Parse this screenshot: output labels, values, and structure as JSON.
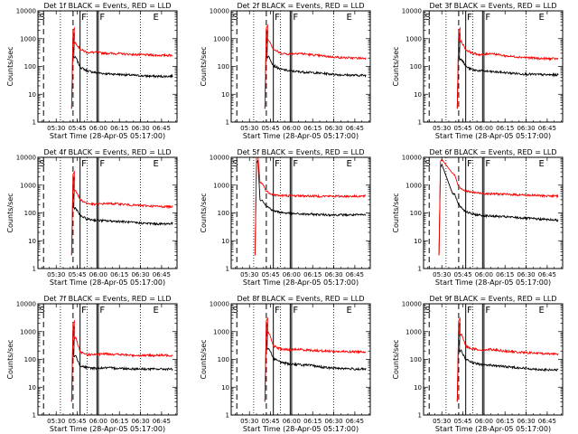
{
  "figure": {
    "xlabel": "Start Time (28-Apr-05 05:17:00)",
    "ylabel": "Counts/sec",
    "xtick_labels": [
      "05:30",
      "05:45",
      "06:00",
      "06:15",
      "06:30",
      "06:45"
    ],
    "ytick_labels": [
      "1",
      "10",
      "100",
      "1000",
      "10000"
    ],
    "segment_labels": [
      "S",
      "F",
      "F",
      "E"
    ]
  },
  "colors": {
    "events": "#000000",
    "lld": "#ff0000",
    "axes": "#000000"
  },
  "chart_data": [
    {
      "type": "line",
      "title": "Det 1f BLACK = Events, RED = LLD",
      "xlabel": "Start Time (28-Apr-05 05:17:00)",
      "ylabel": "Counts/sec",
      "xlim": [
        "05:17",
        "06:56"
      ],
      "ylim": [
        1,
        10000
      ],
      "yscale": "log",
      "grid": false,
      "peak_time": "05:43",
      "peak_value": 2000,
      "series": [
        {
          "name": "Events",
          "times": [
            "05:44",
            "05:47",
            "05:52",
            "05:58",
            "06:05",
            "06:15",
            "06:25",
            "06:35",
            "06:45",
            "06:53"
          ],
          "values": [
            210,
            95,
            70,
            60,
            55,
            52,
            48,
            45,
            44,
            45
          ]
        },
        {
          "name": "LLD",
          "times": [
            "05:44",
            "05:47",
            "05:52",
            "05:58",
            "06:05",
            "06:15",
            "06:25",
            "06:35",
            "06:45",
            "06:53"
          ],
          "values": [
            700,
            420,
            320,
            320,
            300,
            290,
            270,
            260,
            250,
            255
          ]
        }
      ],
      "vlines": {
        "solid": [
          "05:47",
          "05:59",
          "06:00"
        ],
        "dashed": [
          "05:21",
          "05:42"
        ],
        "dotted": [
          "05:33",
          "05:52",
          "06:30"
        ]
      },
      "segment_times": {
        "S": "05:17",
        "F1": "05:47",
        "F2": "06:00",
        "E": "06:38"
      }
    },
    {
      "type": "line",
      "title": "Det 2f BLACK = Events, RED = LLD",
      "xlabel": "Start Time (28-Apr-05 05:17:00)",
      "ylabel": "Counts/sec",
      "xlim": [
        "05:17",
        "06:56"
      ],
      "ylim": [
        1,
        10000
      ],
      "yscale": "log",
      "grid": false,
      "peak_time": "05:43",
      "peak_value": 2500,
      "series": [
        {
          "name": "Events",
          "times": [
            "05:44",
            "05:47",
            "05:52",
            "05:58",
            "06:05",
            "06:15",
            "06:25",
            "06:35",
            "06:45",
            "06:53"
          ],
          "values": [
            220,
            110,
            80,
            70,
            65,
            60,
            55,
            50,
            48,
            48
          ]
        },
        {
          "name": "LLD",
          "times": [
            "05:44",
            "05:47",
            "05:52",
            "05:58",
            "06:05",
            "06:15",
            "06:25",
            "06:35",
            "06:45",
            "06:53"
          ],
          "values": [
            900,
            420,
            300,
            280,
            300,
            260,
            230,
            210,
            200,
            200
          ]
        }
      ],
      "vlines": {
        "solid": [
          "05:47",
          "05:59",
          "06:00"
        ],
        "dashed": [
          "05:21",
          "05:42"
        ],
        "dotted": [
          "05:33",
          "05:52",
          "06:30"
        ]
      },
      "segment_times": {
        "S": "05:17",
        "F1": "05:47",
        "F2": "06:00",
        "E": "06:38"
      }
    },
    {
      "type": "line",
      "title": "Det 3f BLACK = Events, RED = LLD",
      "xlabel": "Start Time (28-Apr-05 05:17:00)",
      "ylabel": "Counts/sec",
      "xlim": [
        "05:17",
        "06:56"
      ],
      "ylim": [
        1,
        10000
      ],
      "yscale": "log",
      "grid": false,
      "peak_time": "05:43",
      "peak_value": 2000,
      "series": [
        {
          "name": "Events",
          "times": [
            "05:44",
            "05:47",
            "05:52",
            "05:58",
            "06:05",
            "06:15",
            "06:25",
            "06:35",
            "06:45",
            "06:53"
          ],
          "values": [
            190,
            100,
            75,
            70,
            65,
            60,
            55,
            52,
            50,
            50
          ]
        },
        {
          "name": "LLD",
          "times": [
            "05:44",
            "05:47",
            "05:52",
            "05:58",
            "06:05",
            "06:15",
            "06:25",
            "06:35",
            "06:45",
            "06:53"
          ],
          "values": [
            800,
            400,
            300,
            260,
            300,
            240,
            220,
            200,
            190,
            190
          ]
        }
      ],
      "vlines": {
        "solid": [
          "05:47",
          "05:59",
          "06:00"
        ],
        "dashed": [
          "05:21",
          "05:42"
        ],
        "dotted": [
          "05:33",
          "05:52",
          "06:30"
        ]
      },
      "segment_times": {
        "S": "05:17",
        "F1": "05:47",
        "F2": "06:00",
        "E": "06:38"
      }
    },
    {
      "type": "line",
      "title": "Det 4f BLACK = Events, RED = LLD",
      "xlabel": "Start Time (28-Apr-05 05:17:00)",
      "ylabel": "Counts/sec",
      "xlim": [
        "05:17",
        "06:56"
      ],
      "ylim": [
        1,
        10000
      ],
      "yscale": "log",
      "grid": false,
      "peak_time": "05:43",
      "peak_value": 2500,
      "series": [
        {
          "name": "Events",
          "times": [
            "05:44",
            "05:47",
            "05:52",
            "05:58",
            "06:05",
            "06:15",
            "06:25",
            "06:35",
            "06:45",
            "06:53"
          ],
          "values": [
            150,
            80,
            60,
            55,
            52,
            50,
            45,
            42,
            40,
            42
          ]
        },
        {
          "name": "LLD",
          "times": [
            "05:44",
            "05:47",
            "05:52",
            "05:58",
            "06:05",
            "06:15",
            "06:25",
            "06:35",
            "06:45",
            "06:53"
          ],
          "values": [
            650,
            300,
            220,
            200,
            220,
            210,
            190,
            180,
            170,
            170
          ]
        }
      ],
      "vlines": {
        "solid": [
          "05:47",
          "05:59",
          "06:00"
        ],
        "dashed": [
          "05:21",
          "05:42"
        ],
        "dotted": [
          "05:33",
          "05:52",
          "06:30"
        ]
      },
      "segment_times": {
        "S": "05:17",
        "F1": "05:47",
        "F2": "06:00",
        "E": "06:38"
      }
    },
    {
      "type": "line",
      "title": "Det 5f BLACK = Events, RED = LLD",
      "xlabel": "Start Time (28-Apr-05 05:17:00)",
      "ylabel": "Counts/sec",
      "xlim": [
        "05:17",
        "06:56"
      ],
      "ylim": [
        1,
        10000
      ],
      "yscale": "log",
      "grid": false,
      "peak_time": "05:36",
      "peak_value": 10000,
      "series": [
        {
          "name": "Events",
          "times": [
            "05:39",
            "05:42",
            "05:47",
            "05:52",
            "06:00",
            "06:10",
            "06:20",
            "06:30",
            "06:40",
            "06:53"
          ],
          "values": [
            300,
            180,
            120,
            105,
            95,
            90,
            88,
            85,
            85,
            85
          ]
        },
        {
          "name": "LLD",
          "times": [
            "05:39",
            "05:42",
            "05:47",
            "05:52",
            "06:00",
            "06:10",
            "06:20",
            "06:30",
            "06:40",
            "06:53"
          ],
          "values": [
            1200,
            600,
            450,
            420,
            420,
            410,
            400,
            400,
            400,
            400
          ]
        }
      ],
      "vlines": {
        "solid": [
          "05:47",
          "05:59",
          "06:00"
        ],
        "dashed": [
          "05:21",
          "05:42"
        ],
        "dotted": [
          "05:33",
          "05:52",
          "06:30"
        ]
      },
      "segment_times": {
        "S": "05:17",
        "F1": "05:47",
        "F2": "06:00",
        "E": "06:38"
      }
    },
    {
      "type": "line",
      "title": "Det 6f BLACK = Events, RED = LLD",
      "xlabel": "Start Time (28-Apr-05 05:17:00)",
      "ylabel": "Counts/sec",
      "xlim": [
        "05:17",
        "06:56"
      ],
      "ylim": [
        1,
        10000
      ],
      "yscale": "log",
      "grid": false,
      "peak_time": "05:30",
      "peak_value": 7000,
      "series": [
        {
          "name": "Events",
          "times": [
            "05:39",
            "05:42",
            "05:47",
            "05:52",
            "06:00",
            "06:10",
            "06:20",
            "06:30",
            "06:40",
            "06:53"
          ],
          "values": [
            500,
            200,
            110,
            90,
            80,
            75,
            70,
            65,
            60,
            55
          ]
        },
        {
          "name": "LLD",
          "times": [
            "05:39",
            "05:42",
            "05:47",
            "05:52",
            "06:00",
            "06:10",
            "06:20",
            "06:30",
            "06:40",
            "06:53"
          ],
          "values": [
            2500,
            900,
            600,
            550,
            500,
            480,
            460,
            440,
            420,
            400
          ]
        }
      ],
      "vlines": {
        "solid": [
          "05:47",
          "05:59",
          "06:00"
        ],
        "dashed": [
          "05:21",
          "05:42"
        ],
        "dotted": [
          "05:33",
          "05:52",
          "06:30"
        ]
      },
      "segment_times": {
        "S": "05:17",
        "F1": "05:47",
        "F2": "06:00",
        "E": "06:38"
      }
    },
    {
      "type": "line",
      "title": "Det 7f BLACK = Events, RED = LLD",
      "xlabel": "Start Time (28-Apr-05 05:17:00)",
      "ylabel": "Counts/sec",
      "xlim": [
        "05:17",
        "06:56"
      ],
      "ylim": [
        1,
        10000
      ],
      "yscale": "log",
      "grid": false,
      "peak_time": "05:43",
      "peak_value": 2000,
      "series": [
        {
          "name": "Events",
          "times": [
            "05:44",
            "05:47",
            "05:52",
            "05:58",
            "06:05",
            "06:15",
            "06:25",
            "06:35",
            "06:45",
            "06:53"
          ],
          "values": [
            130,
            60,
            50,
            48,
            50,
            48,
            46,
            45,
            45,
            45
          ]
        },
        {
          "name": "LLD",
          "times": [
            "05:44",
            "05:47",
            "05:52",
            "05:58",
            "06:05",
            "06:15",
            "06:25",
            "06:35",
            "06:45",
            "06:53"
          ],
          "values": [
            600,
            180,
            150,
            150,
            160,
            150,
            140,
            140,
            140,
            140
          ]
        }
      ],
      "vlines": {
        "solid": [
          "05:47",
          "05:59",
          "06:00"
        ],
        "dashed": [
          "05:21",
          "05:42"
        ],
        "dotted": [
          "05:33",
          "05:52",
          "06:30"
        ]
      },
      "segment_times": {
        "S": "05:17",
        "F1": "05:47",
        "F2": "06:00",
        "E": "06:38"
      }
    },
    {
      "type": "line",
      "title": "Det 8f BLACK = Events, RED = LLD",
      "xlabel": "Start Time (28-Apr-05 05:17:00)",
      "ylabel": "Counts/sec",
      "xlim": [
        "05:17",
        "06:56"
      ],
      "ylim": [
        1,
        10000
      ],
      "yscale": "log",
      "grid": false,
      "peak_time": "05:43",
      "peak_value": 2500,
      "series": [
        {
          "name": "Events",
          "times": [
            "05:44",
            "05:47",
            "05:52",
            "05:58",
            "06:05",
            "06:15",
            "06:25",
            "06:35",
            "06:45",
            "06:53"
          ],
          "values": [
            250,
            110,
            80,
            70,
            65,
            60,
            50,
            48,
            45,
            45
          ]
        },
        {
          "name": "LLD",
          "times": [
            "05:44",
            "05:47",
            "05:52",
            "05:58",
            "06:05",
            "06:15",
            "06:25",
            "06:35",
            "06:45",
            "06:53"
          ],
          "values": [
            900,
            300,
            240,
            220,
            230,
            210,
            200,
            190,
            190,
            190
          ]
        }
      ],
      "vlines": {
        "solid": [
          "05:47",
          "05:59",
          "06:00"
        ],
        "dashed": [
          "05:21",
          "05:42"
        ],
        "dotted": [
          "05:33",
          "05:52",
          "06:30"
        ]
      },
      "segment_times": {
        "S": "05:17",
        "F1": "05:47",
        "F2": "06:00",
        "E": "06:38"
      }
    },
    {
      "type": "line",
      "title": "Det 9f BLACK = Events, RED = LLD",
      "xlabel": "Start Time (28-Apr-05 05:17:00)",
      "ylabel": "Counts/sec",
      "xlim": [
        "05:17",
        "06:56"
      ],
      "ylim": [
        1,
        10000
      ],
      "yscale": "log",
      "grid": false,
      "peak_time": "05:43",
      "peak_value": 2500,
      "series": [
        {
          "name": "Events",
          "times": [
            "05:44",
            "05:47",
            "05:52",
            "05:58",
            "06:05",
            "06:15",
            "06:25",
            "06:35",
            "06:45",
            "06:53"
          ],
          "values": [
            200,
            100,
            75,
            65,
            62,
            55,
            50,
            45,
            42,
            42
          ]
        },
        {
          "name": "LLD",
          "times": [
            "05:44",
            "05:47",
            "05:52",
            "05:58",
            "06:05",
            "06:15",
            "06:25",
            "06:35",
            "06:45",
            "06:53"
          ],
          "values": [
            800,
            300,
            240,
            220,
            230,
            200,
            180,
            170,
            160,
            160
          ]
        }
      ],
      "vlines": {
        "solid": [
          "05:47",
          "05:59",
          "06:00"
        ],
        "dashed": [
          "05:21",
          "05:42"
        ],
        "dotted": [
          "05:33",
          "05:52",
          "06:30"
        ]
      },
      "segment_times": {
        "S": "05:17",
        "F1": "05:47",
        "F2": "06:00",
        "E": "06:38"
      }
    }
  ]
}
